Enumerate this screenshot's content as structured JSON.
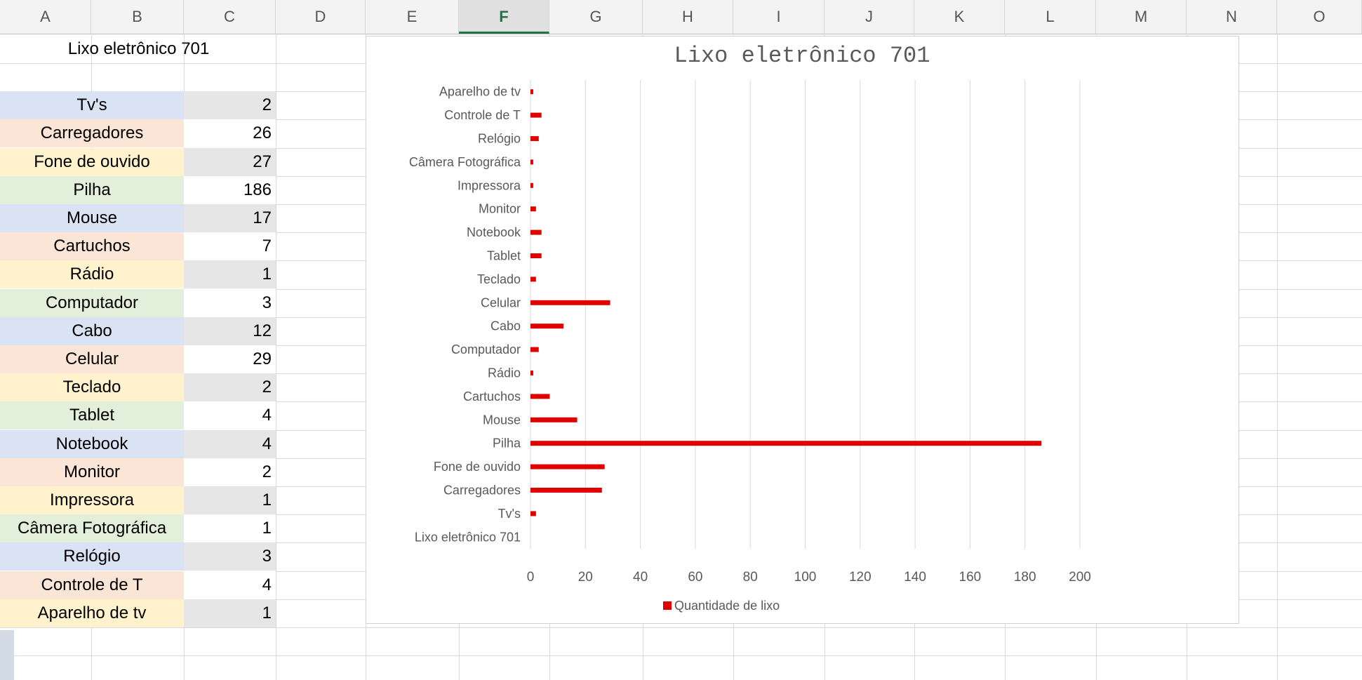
{
  "columns": [
    "A",
    "B",
    "C",
    "D",
    "E",
    "F",
    "G",
    "H",
    "I",
    "J",
    "K",
    "L",
    "M",
    "N",
    "O"
  ],
  "selected_column": "F",
  "sheet": {
    "title": "Lixo eletrônico 701",
    "rows": [
      {
        "label": "Tv's",
        "value": "2",
        "color": "#dae3f3"
      },
      {
        "label": "Carregadores",
        "value": "26",
        "color": "#fbe5d6"
      },
      {
        "label": "Fone de ouvido",
        "value": "27",
        "color": "#fff2cc"
      },
      {
        "label": "Pilha",
        "value": "186",
        "color": "#e2efda"
      },
      {
        "label": "Mouse",
        "value": "17",
        "color": "#dae3f3"
      },
      {
        "label": "Cartuchos",
        "value": "7",
        "color": "#fbe5d6"
      },
      {
        "label": "Rádio",
        "value": "1",
        "color": "#fff2cc"
      },
      {
        "label": "Computador",
        "value": "3",
        "color": "#e2efda"
      },
      {
        "label": "Cabo",
        "value": "12",
        "color": "#dae3f3"
      },
      {
        "label": "Celular",
        "value": "29",
        "color": "#fbe5d6"
      },
      {
        "label": "Teclado",
        "value": "2",
        "color": "#fff2cc"
      },
      {
        "label": "Tablet",
        "value": "4",
        "color": "#e2efda"
      },
      {
        "label": "Notebook",
        "value": "4",
        "color": "#dae3f3"
      },
      {
        "label": "Monitor",
        "value": "2",
        "color": "#fbe5d6"
      },
      {
        "label": "Impressora",
        "value": "1",
        "color": "#fff2cc"
      },
      {
        "label": "Câmera Fotográfica",
        "value": "1",
        "color": "#e2efda"
      },
      {
        "label": "Relógio",
        "value": "3",
        "color": "#dae3f3"
      },
      {
        "label": "Controle de T",
        "value": "4",
        "color": "#fbe5d6"
      },
      {
        "label": "Aparelho de tv",
        "value": "1",
        "color": "#fff2cc"
      }
    ]
  },
  "chart_data": {
    "type": "bar",
    "orientation": "horizontal",
    "title": "Lixo eletrônico 701",
    "categories": [
      "Lixo eletrônico 701",
      "Tv's",
      "Carregadores",
      "Fone de ouvido",
      "Pilha",
      "Mouse",
      "Cartuchos",
      "Rádio",
      "Computador",
      "Cabo",
      "Celular",
      "Teclado",
      "Tablet",
      "Notebook",
      "Monitor",
      "Impressora",
      "Câmera Fotográfica",
      "Relógio",
      "Controle de T",
      "Aparelho de tv"
    ],
    "series": [
      {
        "name": "Quantidade de lixo",
        "color": "#e00000",
        "values": [
          null,
          2,
          26,
          27,
          186,
          17,
          7,
          1,
          3,
          12,
          29,
          2,
          4,
          4,
          2,
          1,
          1,
          3,
          4,
          1
        ]
      }
    ],
    "xlim": [
      0,
      200
    ],
    "xticks": [
      0,
      20,
      40,
      60,
      80,
      100,
      120,
      140,
      160,
      180,
      200
    ],
    "grid": true,
    "legend": "bottom"
  }
}
